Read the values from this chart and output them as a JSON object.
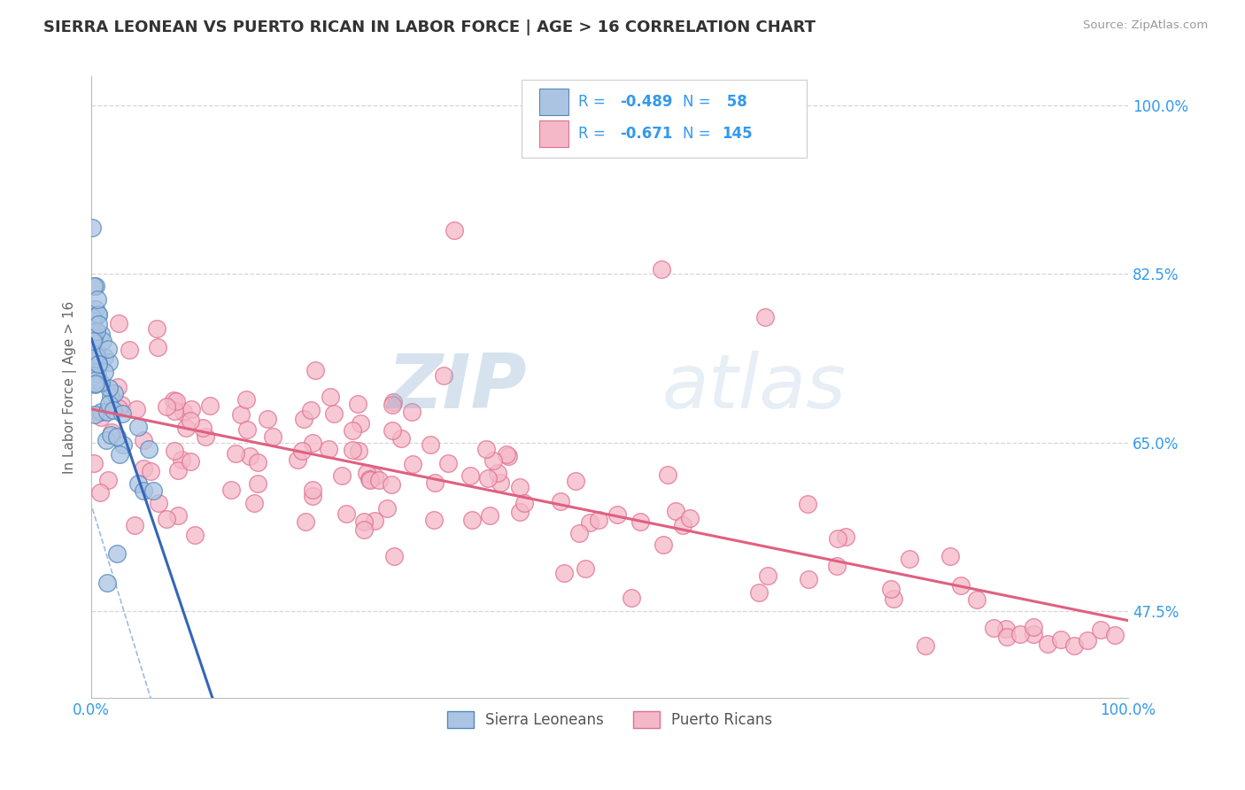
{
  "title": "SIERRA LEONEAN VS PUERTO RICAN IN LABOR FORCE | AGE > 16 CORRELATION CHART",
  "source_text": "Source: ZipAtlas.com",
  "ylabel": "In Labor Force | Age > 16",
  "xmin": 0.0,
  "xmax": 1.0,
  "ymin": 0.385,
  "ymax": 1.03,
  "ytick_labels": [
    "47.5%",
    "65.0%",
    "82.5%",
    "100.0%"
  ],
  "ytick_values": [
    0.475,
    0.65,
    0.825,
    1.0
  ],
  "watermark_zip": "ZIP",
  "watermark_atlas": "atlas",
  "sierra_color": "#aac4e2",
  "puerto_color": "#f5b8c8",
  "sierra_edge": "#5588bb",
  "puerto_edge": "#e07090",
  "trend_sierra": "#3366bb",
  "trend_puerto": "#e06080",
  "trend_dashed_color": "#88aadd",
  "bg_color": "#ffffff",
  "grid_color": "#cccccc",
  "title_color": "#333333",
  "axis_label_color": "#666666",
  "tick_label_color": "#3399ee",
  "legend_text_color": "#3399ee",
  "legend_border": "#cccccc"
}
